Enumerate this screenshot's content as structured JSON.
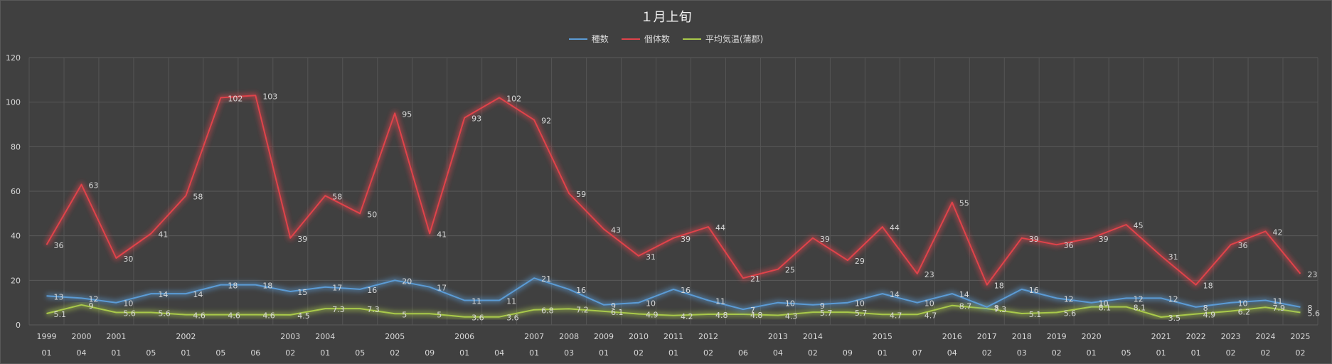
{
  "chart_data": {
    "type": "line",
    "title": "１月上旬",
    "ylim": [
      0,
      120
    ],
    "yticks": [
      0,
      20,
      40,
      60,
      80,
      100,
      120
    ],
    "grid": true,
    "legend_position": "top",
    "x_year_labels": [
      "1999",
      "2000",
      "2001",
      "",
      "2002",
      "",
      "",
      "2003",
      "2004",
      "",
      "2005",
      "",
      "2006",
      "",
      "2007",
      "2008",
      "2009",
      "2010",
      "2011",
      "2012",
      "",
      "2013",
      "2014",
      "",
      "2015",
      "",
      "2016",
      "2017",
      "2018",
      "2019",
      "2020",
      "",
      "2021",
      "2022",
      "2023",
      "2024",
      "2025"
    ],
    "x_sub_labels": [
      "01",
      "04",
      "01",
      "05",
      "01",
      "05",
      "06",
      "02",
      "01",
      "05",
      "02",
      "09",
      "01",
      "04",
      "01",
      "03",
      "01",
      "02",
      "01",
      "02",
      "06",
      "04",
      "02",
      "09",
      "01",
      "07",
      "04",
      "02",
      "03",
      "02",
      "01",
      "05",
      "01",
      "01",
      "02",
      "02",
      "02"
    ],
    "series": [
      {
        "name": "種数",
        "color": "#5b9bd5",
        "values": [
          13,
          12,
          10,
          14,
          14,
          18,
          18,
          15,
          17,
          16,
          20,
          17,
          11,
          11,
          21,
          16,
          9,
          10,
          16,
          11,
          7,
          10,
          9,
          10,
          14,
          10,
          14,
          8,
          16,
          12,
          10,
          12,
          12,
          8,
          10,
          11,
          8
        ],
        "labels": [
          "13",
          "12",
          "10",
          "14",
          "14",
          "18",
          "18",
          "15",
          "17",
          "16",
          "20",
          "17",
          "11",
          "11",
          "21",
          "16",
          "9",
          "10",
          "16",
          "11",
          "7",
          "10",
          "9",
          "10",
          "14",
          "10",
          "14",
          "8",
          "16",
          "12",
          "10",
          "12",
          "12",
          "8",
          "10",
          "11",
          "8"
        ]
      },
      {
        "name": "個体数",
        "color": "#e0434a",
        "values": [
          36,
          63,
          30,
          41,
          58,
          102,
          103,
          39,
          58,
          50,
          95,
          41,
          93,
          102,
          92,
          59,
          43,
          31,
          39,
          44,
          21,
          25,
          39,
          29,
          44,
          23,
          55,
          18,
          39,
          36,
          39,
          45,
          31,
          18,
          36,
          42,
          23
        ],
        "labels": [
          "36",
          "63",
          "30",
          "41",
          "58",
          "102",
          "103",
          "39",
          "58",
          "50",
          "95",
          "41",
          "93",
          "102",
          "92",
          "59",
          "43",
          "31",
          "39",
          "44",
          "21",
          "25",
          "39",
          "29",
          "44",
          "23",
          "55",
          "18",
          "39",
          "36",
          "39",
          "45",
          "31",
          "18",
          "36",
          "42",
          "23"
        ]
      },
      {
        "name": "平均気温(蒲郡)",
        "color": "#a9c94a",
        "values": [
          5.1,
          9,
          5.6,
          5.6,
          4.6,
          4.6,
          4.6,
          4.5,
          7.3,
          7.3,
          5,
          5,
          3.6,
          3.6,
          6.8,
          7.2,
          6.1,
          4.9,
          4.2,
          4.8,
          4.8,
          4.3,
          5.7,
          5.7,
          4.7,
          4.7,
          8.7,
          7.3,
          5.1,
          5.6,
          8.1,
          8.1,
          3.5,
          4.9,
          6.2,
          7.9,
          5.6
        ],
        "labels": [
          "5.1",
          "9",
          "5.6",
          "5.6",
          "4.6",
          "4.6",
          "4.6",
          "4.5",
          "7.3",
          "7.3",
          "5",
          "5",
          "3.6",
          "3.6",
          "6.8",
          "7.2",
          "6.1",
          "4.9",
          "4.2",
          "4.8",
          "4.8",
          "4.3",
          "5.7",
          "5.7",
          "4.7",
          "4.7",
          "8.7",
          "7.3",
          "5.1",
          "5.6",
          "8.1",
          "8.1",
          "3.5",
          "4.9",
          "6.2",
          "7.9",
          "5.6"
        ]
      }
    ]
  }
}
